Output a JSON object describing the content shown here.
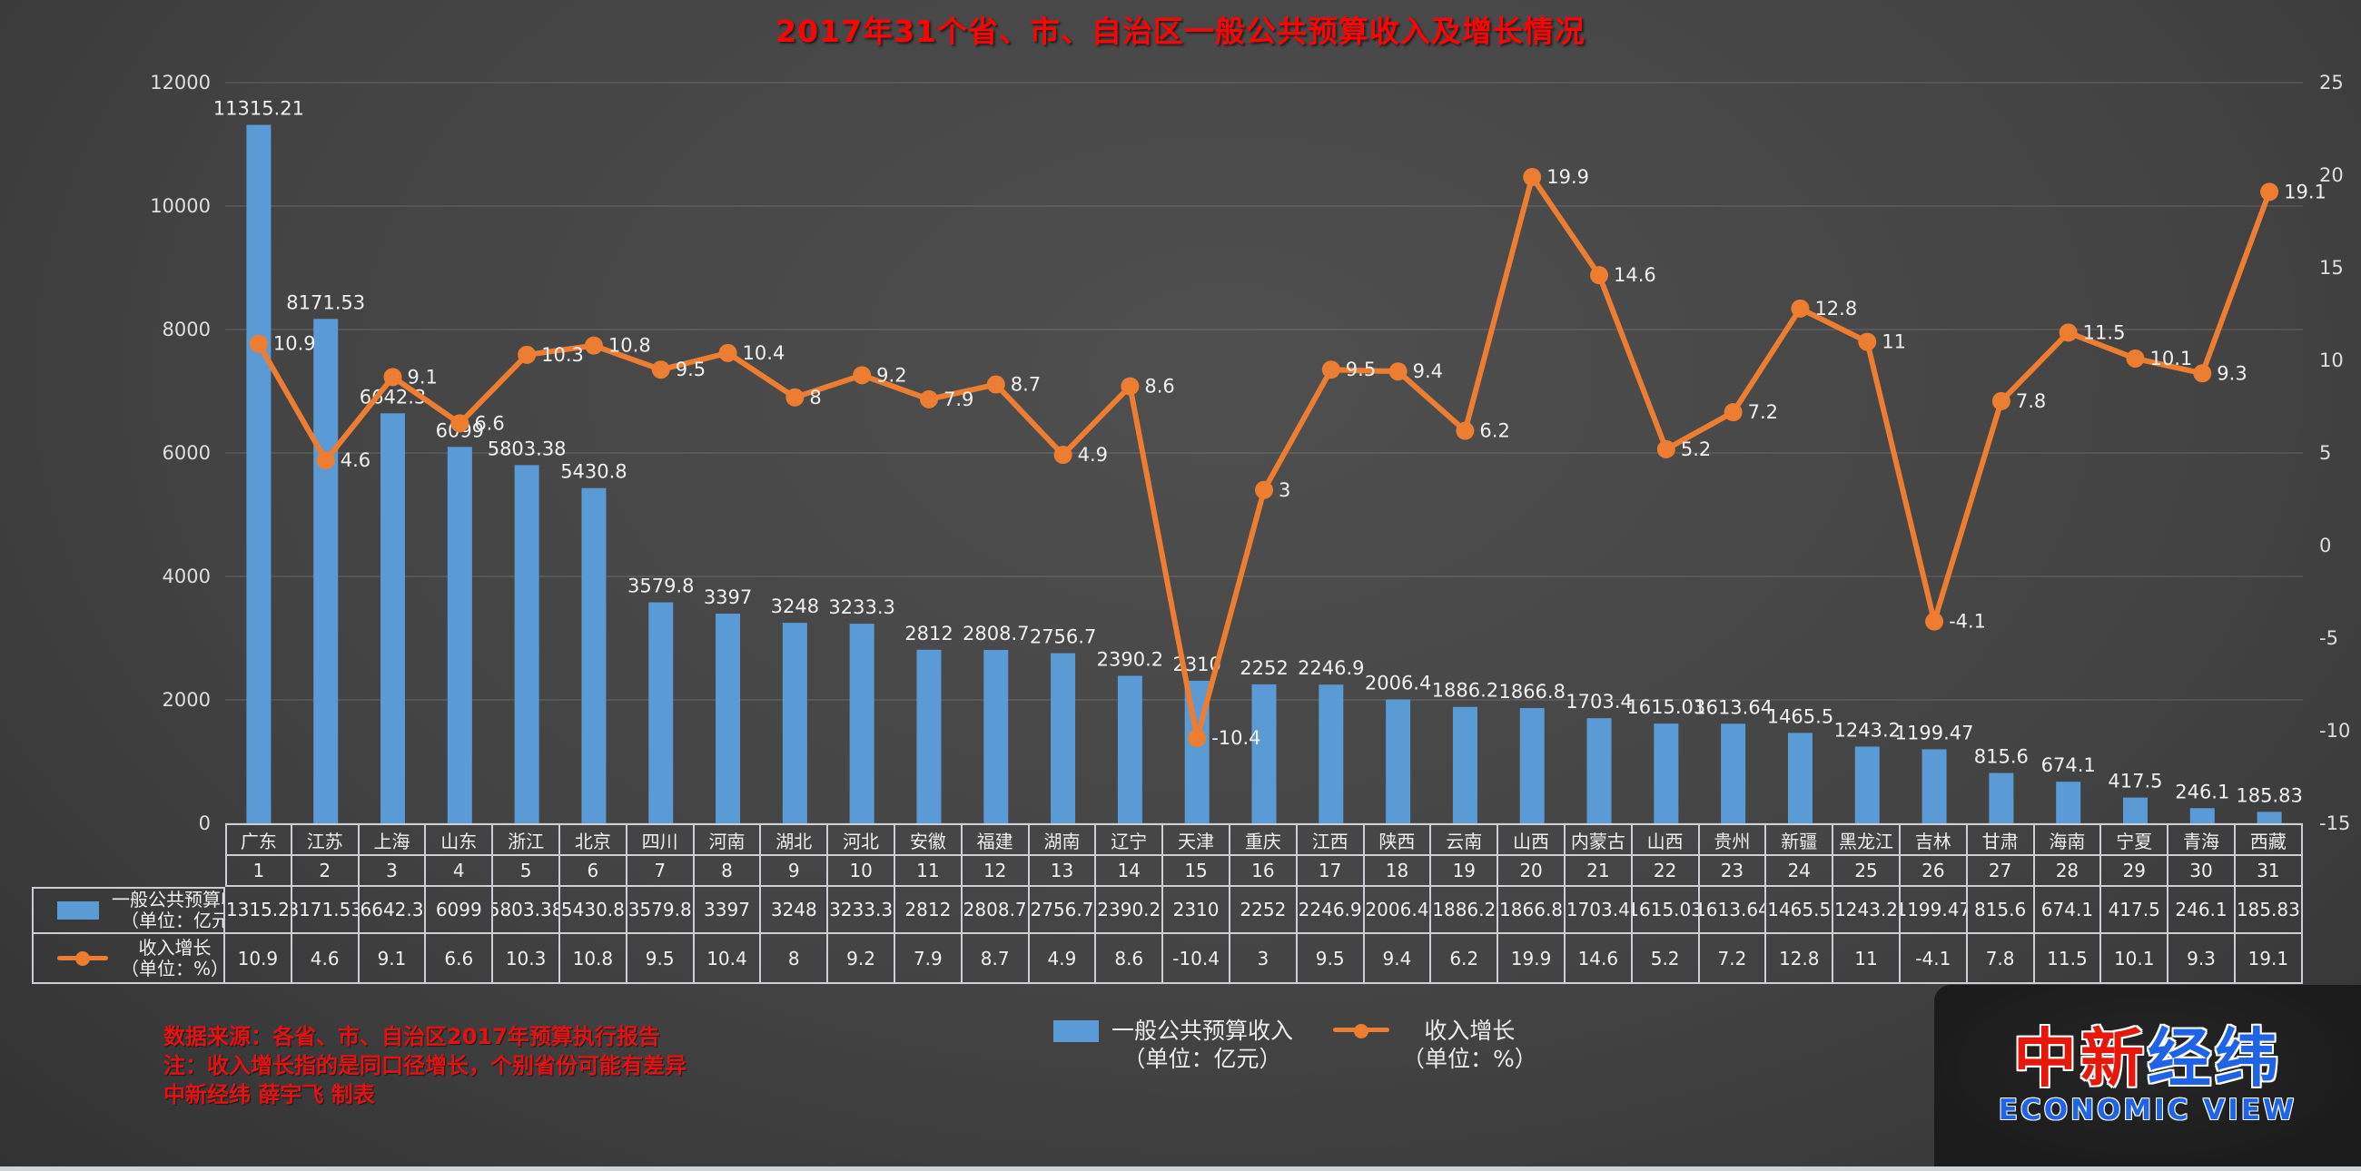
{
  "title": "2017年31个省、市、自治区一般公共预算收入及增长情况",
  "chart_data": {
    "type": "bar+line combo",
    "categories": [
      "广东",
      "江苏",
      "上海",
      "山东",
      "浙江",
      "北京",
      "四川",
      "河南",
      "湖北",
      "河北",
      "安徽",
      "福建",
      "湖南",
      "辽宁",
      "天津",
      "重庆",
      "江西",
      "陕西",
      "云南",
      "山西",
      "内蒙古",
      "山西",
      "贵州",
      "新疆",
      "黑龙江",
      "吉林",
      "甘肃",
      "海南",
      "宁夏",
      "青海",
      "西藏"
    ],
    "ranks": [
      "1",
      "2",
      "3",
      "4",
      "5",
      "6",
      "7",
      "8",
      "9",
      "10",
      "11",
      "12",
      "13",
      "14",
      "15",
      "16",
      "17",
      "18",
      "19",
      "20",
      "21",
      "22",
      "23",
      "24",
      "25",
      "26",
      "27",
      "28",
      "29",
      "30",
      "31"
    ],
    "series": [
      {
        "name": "一般公共预算收入",
        "unit": "（单位：亿元）",
        "type": "bar",
        "axis": "left",
        "color": "#5B9BD5",
        "values": [
          11315.21,
          8171.53,
          6642.3,
          6099,
          5803.38,
          5430.8,
          3579.8,
          3397,
          3248,
          3233.3,
          2812,
          2808.7,
          2756.7,
          2390.2,
          2310,
          2252,
          2246.9,
          2006.4,
          1886.2,
          1866.8,
          1703.4,
          1615.03,
          1613.64,
          1465.5,
          1243.2,
          1199.47,
          815.6,
          674.1,
          417.5,
          246.1,
          185.83
        ]
      },
      {
        "name": "收入增长",
        "unit": "（单位：%）",
        "type": "line",
        "axis": "right",
        "color": "#ED7D31",
        "values": [
          10.9,
          4.6,
          9.1,
          6.6,
          10.3,
          10.8,
          9.5,
          10.4,
          8,
          9.2,
          7.9,
          8.7,
          4.9,
          8.6,
          -10.4,
          3,
          9.5,
          9.4,
          6.2,
          19.9,
          14.6,
          5.2,
          7.2,
          12.8,
          11,
          -4.1,
          7.8,
          11.5,
          10.1,
          9.3,
          19.1
        ]
      }
    ],
    "left_axis": {
      "min": 0,
      "max": 12000,
      "ticks": [
        0,
        2000,
        4000,
        6000,
        8000,
        10000,
        12000
      ]
    },
    "right_axis": {
      "min": -15,
      "max": 25,
      "ticks": [
        -15,
        -10,
        -5,
        0,
        5,
        10,
        15,
        20,
        25
      ]
    },
    "grid": true,
    "legend_position": "bottom-center"
  },
  "notes": [
    "数据来源：各省、市、自治区2017年预算执行报告",
    "注：收入增长指的是同口径增长，个别省份可能有差异",
    "中新经纬 薛宇飞 制表"
  ],
  "logo": {
    "cn_red": "中新",
    "cn_blue": "经纬",
    "en": "ECONOMIC VIEW"
  },
  "colors": {
    "bar": "#5B9BD5",
    "line": "#ED7D31",
    "title_red": "#fb0404",
    "note_red": "#e31212",
    "logo_red": "#e8170c",
    "logo_blue": "#1f63e8"
  }
}
